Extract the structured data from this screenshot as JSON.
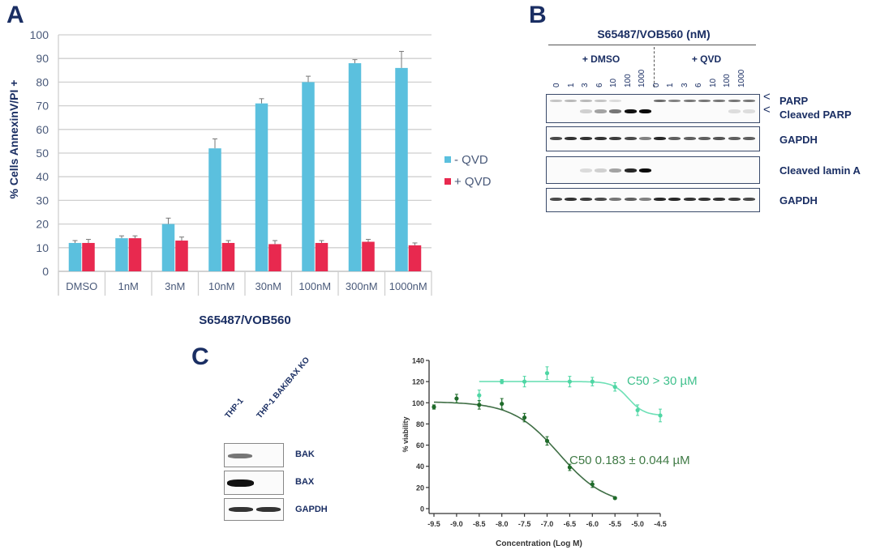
{
  "panels": {
    "a": {
      "letter": "A"
    },
    "b": {
      "letter": "B"
    },
    "c": {
      "letter": "C"
    }
  },
  "chart_data": [
    {
      "id": "panel-a",
      "type": "bar",
      "title": "",
      "xlabel": "S65487/VOB560",
      "ylabel": "% Cells AnnexinV/PI +",
      "ylim": [
        0,
        100
      ],
      "yticks": [
        0,
        10,
        20,
        30,
        40,
        50,
        60,
        70,
        80,
        90,
        100
      ],
      "grid": true,
      "legend_position": "right",
      "categories": [
        "DMSO",
        "1nM",
        "3nM",
        "10nM",
        "30nM",
        "100nM",
        "300nM",
        "1000nM"
      ],
      "series": [
        {
          "name": "- QVD",
          "color": "#5bc0de",
          "values": [
            12,
            14,
            20,
            52,
            71,
            80,
            88,
            86
          ],
          "errors": [
            1,
            1,
            2.5,
            4,
            2,
            2.5,
            1.5,
            7
          ]
        },
        {
          "name": "+ QVD",
          "color": "#e8294f",
          "values": [
            12,
            14,
            13,
            12,
            11.5,
            12,
            12.5,
            11
          ],
          "errors": [
            1.5,
            1,
            1.5,
            1,
            1.5,
            1,
            1,
            1
          ]
        }
      ]
    },
    {
      "id": "panel-c-curve",
      "type": "scatter",
      "title": "",
      "xlabel": "Concentration (Log M)",
      "ylabel": "% viability",
      "xlim": [
        -9.5,
        -4.5
      ],
      "ylim": [
        0,
        140
      ],
      "xticks": [
        -9.5,
        -9.0,
        -8.5,
        -8.0,
        -7.5,
        -7.0,
        -6.5,
        -6.0,
        -5.5,
        -5.0,
        -4.5
      ],
      "yticks": [
        0,
        20,
        40,
        60,
        80,
        100,
        120,
        140
      ],
      "grid": false,
      "series": [
        {
          "name": "THP-1 BAK/BAX KO",
          "color": "#4fd6a4",
          "x": [
            -8.5,
            -8.0,
            -7.5,
            -7.0,
            -6.5,
            -6.0,
            -5.5,
            -5.0,
            -4.5
          ],
          "y": [
            107,
            120,
            120,
            128,
            120,
            120,
            115,
            93,
            88
          ],
          "errors": [
            5,
            2,
            5,
            6,
            5,
            4,
            4,
            5,
            6
          ],
          "fit": {
            "top": 120,
            "bottom": 88,
            "logEC50": -5.2,
            "hill": 2.5,
            "xstart": -8.5,
            "xend": -4.5
          },
          "annotation": "C50 > 30 µM"
        },
        {
          "name": "THP-1",
          "color": "#1f6b2a",
          "x": [
            -9.5,
            -9.0,
            -8.5,
            -8.0,
            -7.5,
            -7.0,
            -6.5,
            -6.0,
            -5.5
          ],
          "y": [
            96,
            104,
            98,
            99,
            86,
            64,
            39,
            23,
            10
          ],
          "errors": [
            2,
            4,
            4,
            5,
            4,
            4,
            3,
            3,
            1
          ],
          "fit": {
            "top": 101,
            "bottom": 3,
            "logEC50": -6.74,
            "hill": 0.85,
            "xstart": -9.5,
            "xend": -5.5
          },
          "annotation": "C50 0.183 ± 0.044 µM"
        }
      ]
    }
  ],
  "blot_b": {
    "title": "S65487/VOB560 (nM)",
    "groups": [
      "+ DMSO",
      "+ QVD"
    ],
    "lanes_dmso": [
      "0",
      "1",
      "3",
      "6",
      "10",
      "100",
      "1000"
    ],
    "lanes_qvd": [
      "0",
      "1",
      "3",
      "6",
      "10",
      "100",
      "1000"
    ],
    "rows": [
      {
        "label": "PARP",
        "label2": "Cleaved PARP"
      },
      {
        "label": "GAPDH"
      },
      {
        "label": "Cleaved lamin A"
      },
      {
        "label": "GAPDH"
      }
    ],
    "arrow_glyph": "<"
  },
  "blot_c": {
    "lanes": [
      "THP-1",
      "THP-1 BAK/BAX KO"
    ],
    "rows": [
      {
        "label": "BAK"
      },
      {
        "label": "BAX"
      },
      {
        "label": "GAPDH"
      }
    ]
  }
}
